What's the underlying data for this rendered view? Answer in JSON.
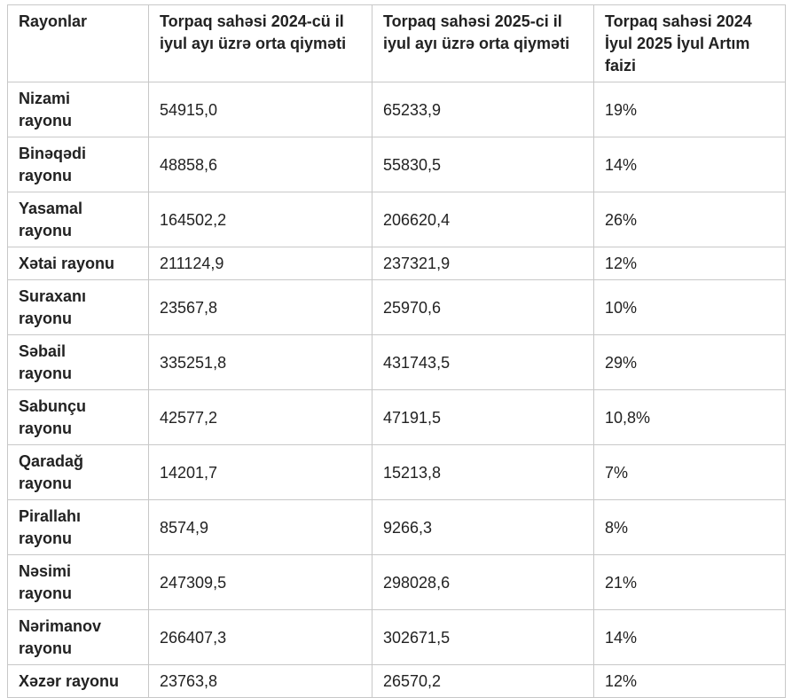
{
  "table": {
    "header": [
      "Rayonlar",
      "Torpaq sahəsi 2024-cü il iyul ayı üzrə orta qiyməti",
      "Torpaq sahəsi 2025-ci il iyul ayı üzrə orta qiyməti",
      "Torpaq sahəsi 2024 İyul 2025 İyul Artım faizi"
    ],
    "rows": [
      [
        "Nizami rayonu",
        "54915,0",
        "65233,9",
        "19%"
      ],
      [
        "Binəqədi rayonu",
        "48858,6",
        "55830,5",
        "14%"
      ],
      [
        "Yasamal rayonu",
        "164502,2",
        "206620,4",
        "26%"
      ],
      [
        "Xətai rayonu",
        "211124,9",
        "237321,9",
        "12%"
      ],
      [
        "Suraxanı rayonu",
        "23567,8",
        "25970,6",
        "10%"
      ],
      [
        "Səbail rayonu",
        "335251,8",
        "431743,5",
        "29%"
      ],
      [
        "Sabunçu rayonu",
        "42577,2",
        "47191,5",
        "10,8%"
      ],
      [
        "Qaradağ rayonu",
        "14201,7",
        "15213,8",
        "7%"
      ],
      [
        "Pirallahı rayonu",
        "8574,9",
        "9266,3",
        "8%"
      ],
      [
        "Nəsimi rayonu",
        "247309,5",
        "298028,6",
        "21%"
      ],
      [
        "Nərimanov rayonu",
        "266407,3",
        "302671,5",
        "14%"
      ],
      [
        "Xəzər rayonu",
        "23763,8",
        "26570,2",
        "12%"
      ]
    ]
  }
}
